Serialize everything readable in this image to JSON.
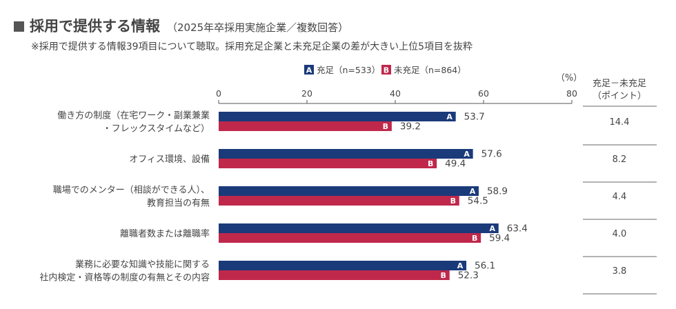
{
  "header": {
    "title": "採用で提供する情報",
    "subtitle": "（2025年卒採用実施企業／複数回答）",
    "note": "※採用で提供する情報39項目について聴取。採用充足企業と未充足企業の差が大きい上位5項目を抜粋"
  },
  "chart_data": {
    "type": "bar",
    "orientation": "horizontal",
    "unit": "（%）",
    "xlim": [
      0,
      80
    ],
    "xticks": [
      "0",
      "20",
      "40",
      "60",
      "80"
    ],
    "legend": [
      {
        "badge": "A",
        "name": "充足（n=533）"
      },
      {
        "badge": "B",
        "name": "未充足（n=864）"
      }
    ],
    "diff_header": [
      "充足－未充足",
      "（ポイント）"
    ],
    "categories": [
      [
        "働き方の制度（在宅ワーク・副業兼業",
        "・フレックスタイムなど）"
      ],
      [
        "オフィス環境、設備"
      ],
      [
        "職場でのメンター（相談ができる人）、",
        "教育担当の有無"
      ],
      [
        "離職者数または離職率"
      ],
      [
        "業務に必要な知識や技能に関する",
        "社内検定・資格等の制度の有無とその内容"
      ]
    ],
    "series": [
      {
        "name": "充足（n=533）",
        "badge": "A",
        "color": "#1b3a7a",
        "values": [
          53.7,
          57.6,
          58.9,
          63.4,
          56.1
        ]
      },
      {
        "name": "未充足（n=864）",
        "badge": "B",
        "color": "#c0284b",
        "values": [
          39.2,
          49.4,
          54.5,
          59.4,
          52.3
        ]
      }
    ],
    "diff": [
      "14.4",
      "8.2",
      "4.4",
      "4.0",
      "3.8"
    ]
  }
}
